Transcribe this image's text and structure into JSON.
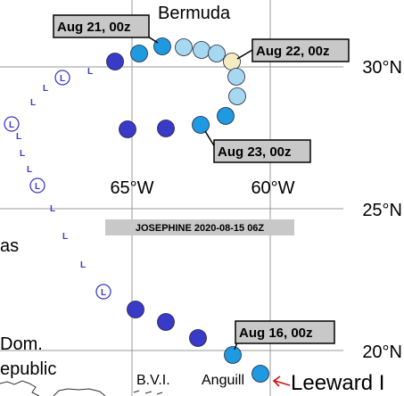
{
  "title_box": "JOSEPHINE 2020-08-15 06Z",
  "latitude_labels": [
    "30°N",
    "25°N",
    "20°N"
  ],
  "longitude_labels": [
    "65°W",
    "60°W"
  ],
  "place_labels": [
    "Bermuda",
    "as",
    "Dom.",
    "epublic",
    "B.V.I.",
    "Anguill",
    "Leeward I"
  ],
  "time_labels": [
    "Aug 21, 00z",
    "Aug 22, 00z",
    "Aug 23, 00z",
    "Aug 16, 00z"
  ],
  "low_marker": "L",
  "low_circle_marker": "L",
  "colors": {
    "grid": "#9a9a9a",
    "land_outline": "#333333",
    "low_track": "#3a3acc",
    "dark_dot": "#3a3ac8",
    "mid_dot": "#1f9ae0",
    "light_dot": "#4fb6e8",
    "pale_dot": "#a6d8ef",
    "cream_dot": "#f3ecc0",
    "label_box": "#c8c8c8",
    "arrow": "#cc1111"
  }
}
